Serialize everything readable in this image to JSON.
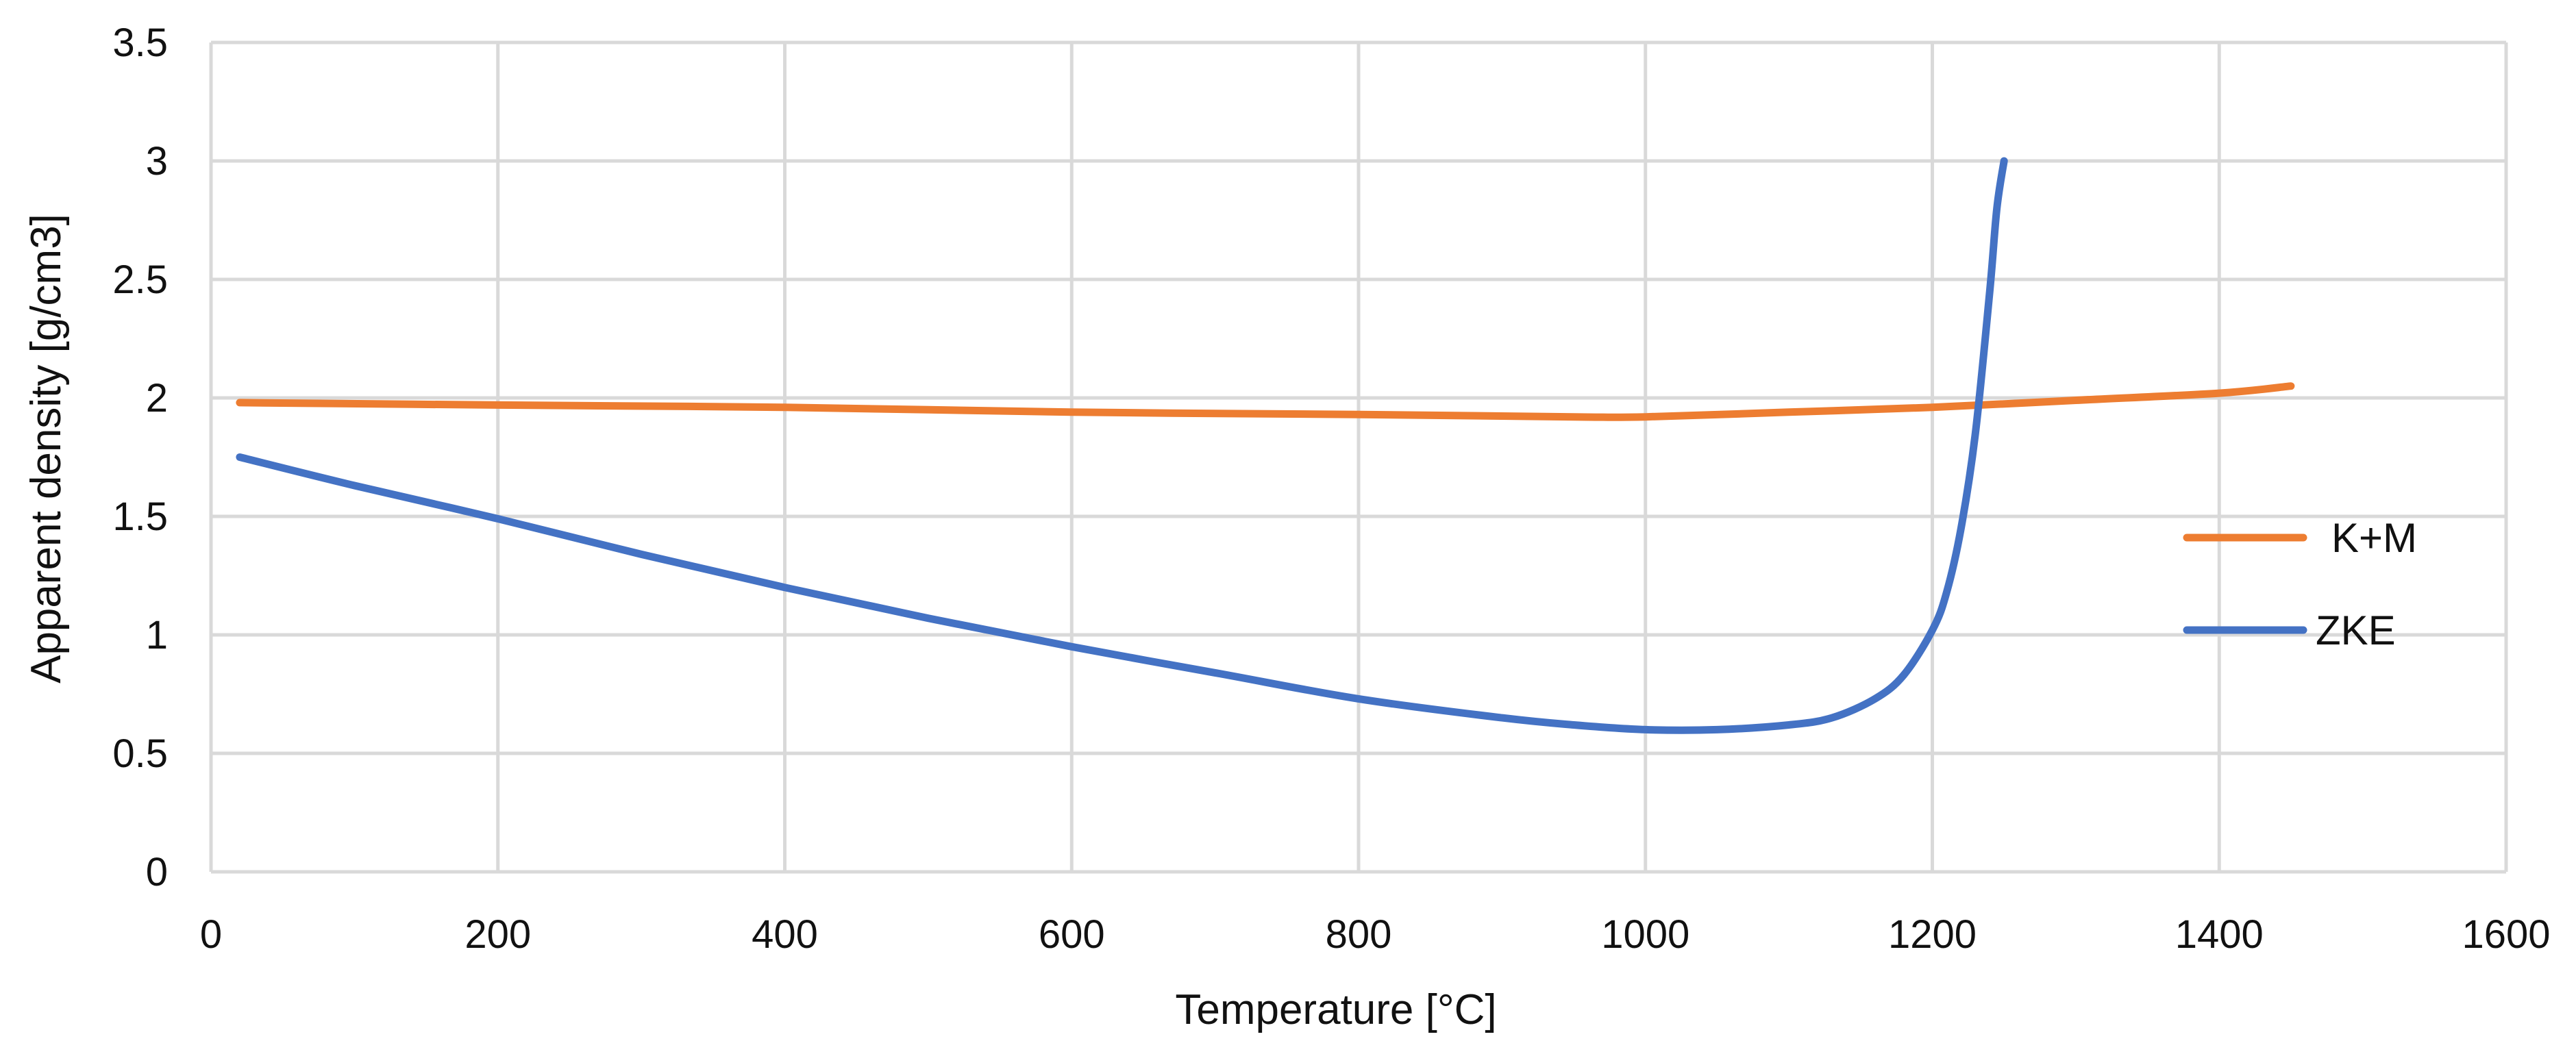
{
  "chart_data": {
    "type": "line",
    "title": "",
    "xlabel": "Temperature [°C]",
    "ylabel": "Apparent density [g/cm3]",
    "xlim": [
      0,
      1600
    ],
    "ylim": [
      0,
      3.5
    ],
    "xticks": [
      0,
      200,
      400,
      600,
      800,
      1000,
      1200,
      1400,
      1600
    ],
    "yticks": [
      0,
      0.5,
      1,
      1.5,
      2,
      2.5,
      3,
      3.5
    ],
    "xtick_labels": [
      "0",
      "200",
      "400",
      "600",
      "800",
      "1000",
      "1200",
      "1400",
      "1600"
    ],
    "ytick_labels": [
      "0",
      "0.5",
      "1",
      "1.5",
      "2",
      "2.5",
      "3",
      "3.5"
    ],
    "grid": true,
    "legend_position": "right",
    "series": [
      {
        "name": "K+M",
        "color": "#ED7D31",
        "x": [
          20,
          200,
          400,
          600,
          800,
          950,
          1000,
          1100,
          1200,
          1300,
          1400,
          1450
        ],
        "y": [
          1.98,
          1.97,
          1.96,
          1.94,
          1.93,
          1.92,
          1.92,
          1.94,
          1.96,
          1.99,
          2.02,
          2.05
        ]
      },
      {
        "name": "ZKE",
        "color": "#4472C4",
        "x": [
          20,
          100,
          200,
          300,
          400,
          500,
          600,
          700,
          800,
          900,
          950,
          1000,
          1050,
          1100,
          1130,
          1160,
          1180,
          1200,
          1210,
          1220,
          1230,
          1240,
          1245,
          1250
        ],
        "y": [
          1.75,
          1.63,
          1.49,
          1.34,
          1.2,
          1.07,
          0.95,
          0.84,
          0.73,
          0.65,
          0.62,
          0.6,
          0.6,
          0.62,
          0.65,
          0.73,
          0.83,
          1.02,
          1.18,
          1.45,
          1.85,
          2.45,
          2.8,
          3.0
        ]
      }
    ]
  }
}
